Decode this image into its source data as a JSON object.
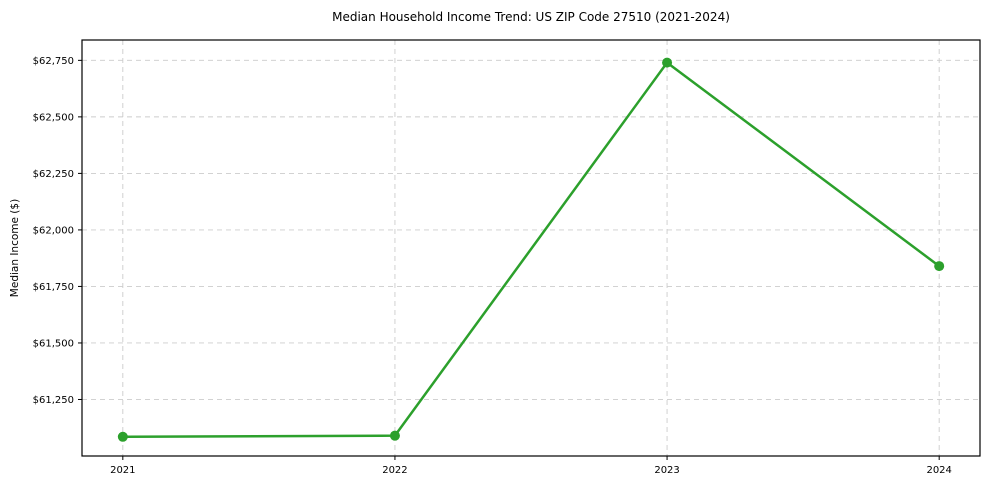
{
  "chart_data": {
    "type": "line",
    "title": "Median Household Income Trend: US ZIP Code 27510 (2021-2024)",
    "xlabel": "",
    "ylabel": "Median Income ($)",
    "x": [
      2021,
      2022,
      2023,
      2024
    ],
    "x_tick_labels": [
      "2021",
      "2022",
      "2023",
      "2024"
    ],
    "series": [
      {
        "name": "Median Household Income",
        "values": [
          61085,
          61090,
          62740,
          61840
        ]
      }
    ],
    "xlim": [
      2020.85,
      2024.15
    ],
    "ylim": [
      61000,
      62840
    ],
    "yticks": [
      61250,
      61500,
      61750,
      62000,
      62250,
      62500,
      62750
    ],
    "ytick_labels": [
      "$61,250",
      "$61,500",
      "$61,750",
      "$62,000",
      "$62,250",
      "$62,500",
      "$62,750"
    ],
    "grid": true,
    "grid_style": "dashed",
    "legend": "none",
    "colors": {
      "line": "#2ca02c",
      "marker": "#2ca02c",
      "grid": "#cccccc",
      "spine": "#000000",
      "text": "#000000",
      "background": "#ffffff"
    }
  }
}
